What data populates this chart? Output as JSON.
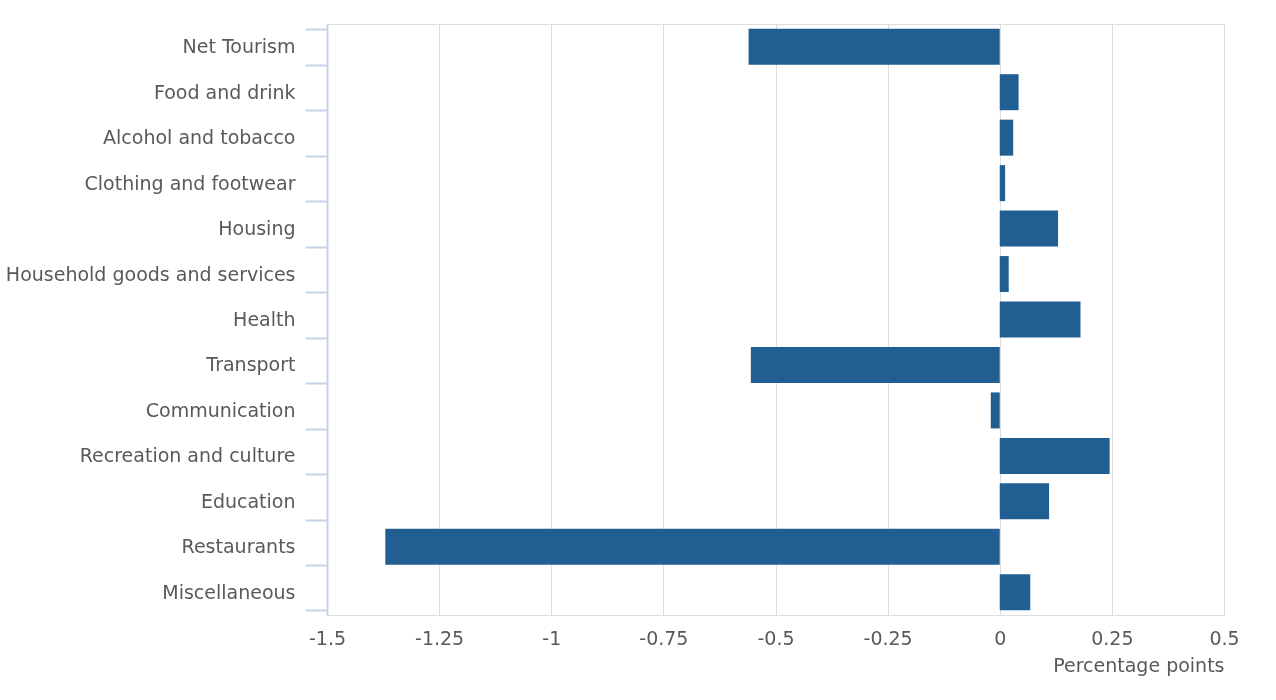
{
  "chart_data": {
    "type": "bar",
    "orientation": "horizontal",
    "categories": [
      "Net Tourism",
      "Food and drink",
      "Alcohol and tobacco",
      "Clothing and footwear",
      "Housing",
      "Household goods and services",
      "Health",
      "Transport",
      "Communication",
      "Recreation and culture",
      "Education",
      "Restaurants",
      "Miscellaneous"
    ],
    "values": [
      -0.56,
      0.042,
      0.03,
      0.012,
      0.13,
      0.02,
      0.18,
      -0.555,
      -0.02,
      0.245,
      0.11,
      -1.37,
      0.068
    ],
    "color": "#215f93",
    "xlabel": "Percentage points",
    "xlim": [
      -1.5,
      0.5
    ],
    "xticks": [
      -1.5,
      -1.25,
      -1,
      -0.75,
      -0.5,
      -0.25,
      0,
      0.25,
      0.5
    ],
    "grid": "x"
  }
}
